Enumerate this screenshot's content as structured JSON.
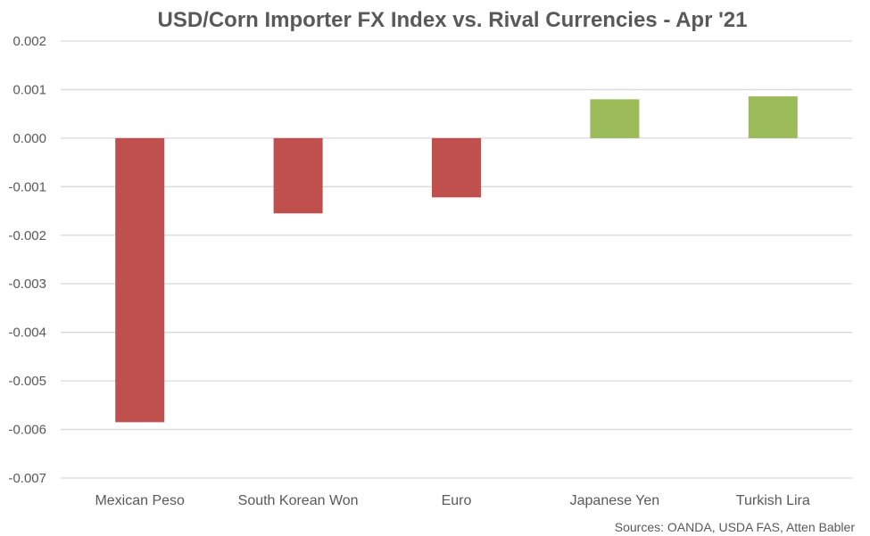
{
  "chart_data": {
    "type": "bar",
    "title": "USD/Corn Importer FX Index vs. Rival Currencies - Apr '21",
    "categories": [
      "Mexican Peso",
      "South Korean Won",
      "Euro",
      "Japanese Yen",
      "Turkish Lira"
    ],
    "values": [
      -0.00585,
      -0.00155,
      -0.00122,
      0.0008,
      0.00086
    ],
    "ylim": [
      -0.007,
      0.002
    ],
    "yticks": [
      "0.002",
      "0.001",
      "0.000",
      "-0.001",
      "-0.002",
      "-0.003",
      "-0.004",
      "-0.005",
      "-0.006",
      "-0.007"
    ],
    "ytick_values": [
      0.002,
      0.001,
      0.0,
      -0.001,
      -0.002,
      -0.003,
      -0.004,
      -0.005,
      -0.006,
      -0.007
    ],
    "grid": true,
    "colors": {
      "negative": "#c0504d",
      "positive": "#9bbb59",
      "gridline": "#d9d9d9",
      "text": "#595959"
    },
    "source": "Sources: OANDA, USDA FAS, Atten Babler"
  }
}
